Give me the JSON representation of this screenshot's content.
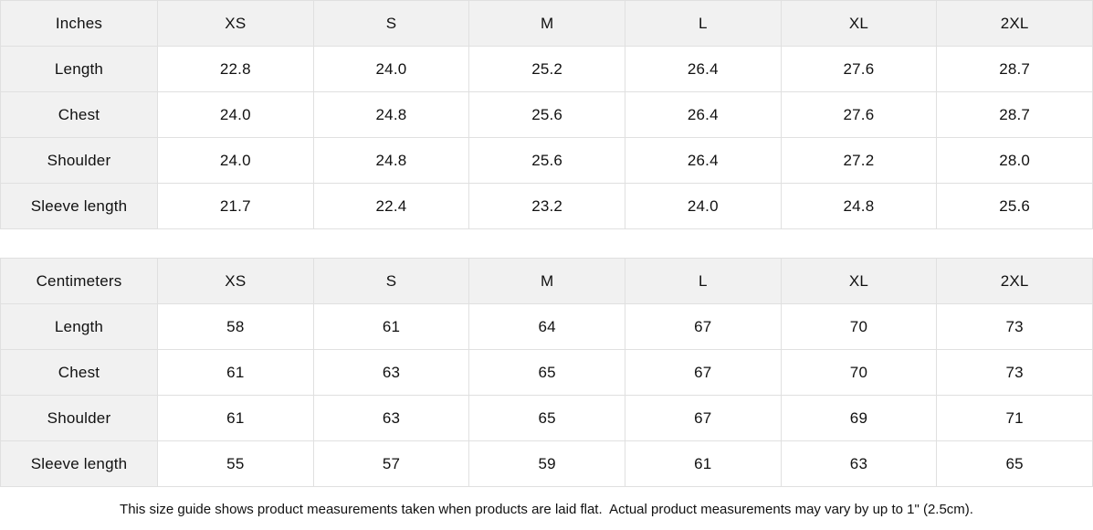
{
  "colors": {
    "header_bg": "#f1f1f1",
    "border": "#e0e0e0",
    "cell_bg": "#ffffff",
    "text": "#111111"
  },
  "tables": [
    {
      "name": "inches-size-table",
      "unit_label": "Inches",
      "columns": [
        "XS",
        "S",
        "M",
        "L",
        "XL",
        "2XL"
      ],
      "rows": [
        {
          "label": "Length",
          "values": [
            "22.8",
            "24.0",
            "25.2",
            "26.4",
            "27.6",
            "28.7"
          ]
        },
        {
          "label": "Chest",
          "values": [
            "24.0",
            "24.8",
            "25.6",
            "26.4",
            "27.6",
            "28.7"
          ]
        },
        {
          "label": "Shoulder",
          "values": [
            "24.0",
            "24.8",
            "25.6",
            "26.4",
            "27.2",
            "28.0"
          ]
        },
        {
          "label": "Sleeve length",
          "values": [
            "21.7",
            "22.4",
            "23.2",
            "24.0",
            "24.8",
            "25.6"
          ]
        }
      ]
    },
    {
      "name": "centimeters-size-table",
      "unit_label": "Centimeters",
      "columns": [
        "XS",
        "S",
        "M",
        "L",
        "XL",
        "2XL"
      ],
      "rows": [
        {
          "label": "Length",
          "values": [
            "58",
            "61",
            "64",
            "67",
            "70",
            "73"
          ]
        },
        {
          "label": "Chest",
          "values": [
            "61",
            "63",
            "65",
            "67",
            "70",
            "73"
          ]
        },
        {
          "label": "Shoulder",
          "values": [
            "61",
            "63",
            "65",
            "67",
            "69",
            "71"
          ]
        },
        {
          "label": "Sleeve length",
          "values": [
            "55",
            "57",
            "59",
            "61",
            "63",
            "65"
          ]
        }
      ]
    }
  ],
  "footer": {
    "note": "This size guide shows product measurements taken when products are laid flat.  Actual product measurements may vary by up to 1\" (2.5cm)."
  }
}
